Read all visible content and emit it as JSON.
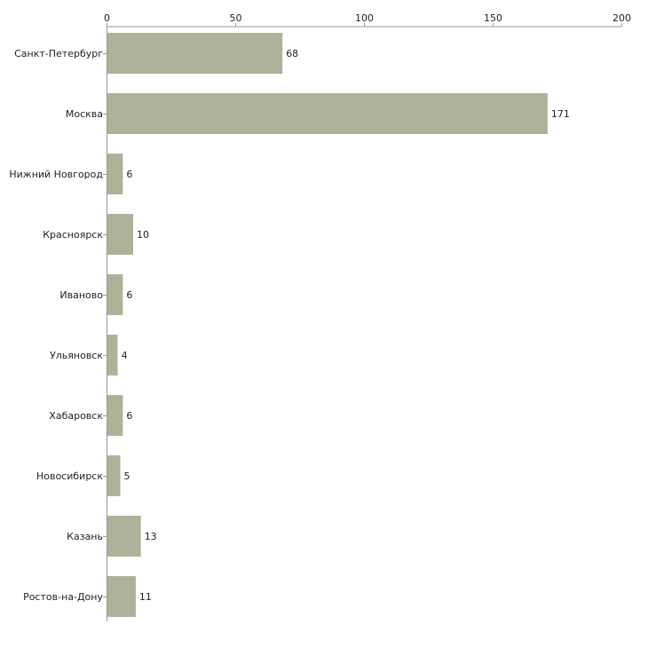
{
  "chart_data": {
    "type": "bar",
    "orientation": "horizontal",
    "title": "",
    "xlabel": "",
    "ylabel": "",
    "xlim": [
      0,
      200
    ],
    "x_ticks": [
      0,
      50,
      100,
      150,
      200
    ],
    "x_tick_labels": [
      "0",
      "50",
      "100",
      "150",
      "200"
    ],
    "grid": false,
    "legend": "none",
    "categories": [
      "Санкт-Петербург",
      "Москва",
      "Нижний Новгород",
      "Красноярск",
      "Иваново",
      "Ульяновск",
      "Хабаровск",
      "Новосибирск",
      "Казань",
      "Ростов-на-Дону"
    ],
    "values": [
      68,
      171,
      6,
      10,
      6,
      4,
      6,
      5,
      13,
      11
    ],
    "value_labels": [
      "68",
      "171",
      "6",
      "10",
      "6",
      "4",
      "6",
      "5",
      "13",
      "11"
    ]
  },
  "colors": {
    "bar": "#adb399",
    "axis": "#999999",
    "text": "#222222",
    "background": "#ffffff"
  }
}
